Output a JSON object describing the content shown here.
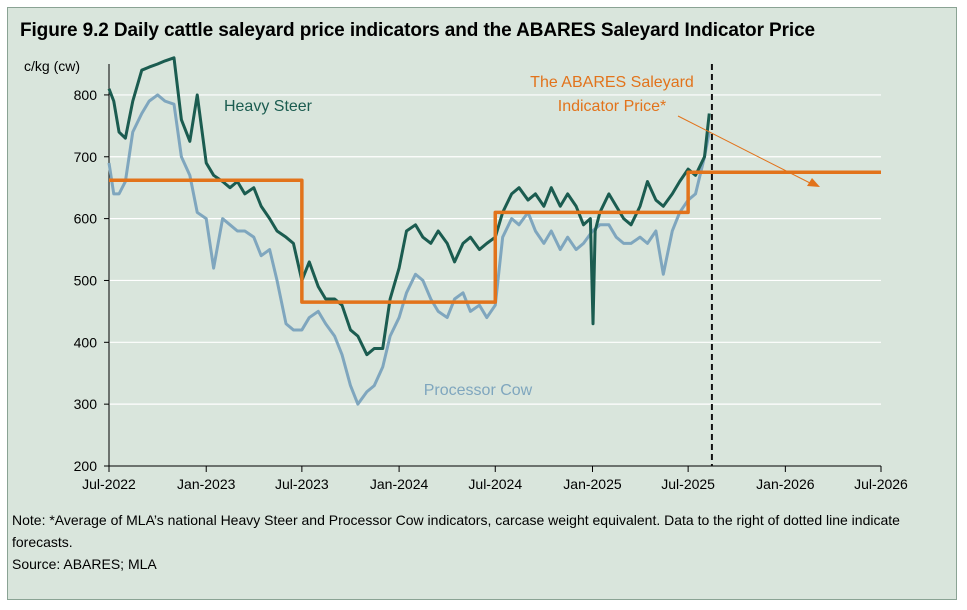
{
  "title": "Figure 9.2 Daily cattle saleyard price indicators and the ABARES Saleyard Indicator Price",
  "note": "Note: *Average of MLA’s national Heavy Steer and Processor Cow indicators, carcase weight equivalent. Data to the right of dotted line indicate forecasts.",
  "source": "Source: ABARES; MLA",
  "colors": {
    "heavy_steer": "#1b5c50",
    "processor_cow": "#7fa6be",
    "indicator": "#e2731b",
    "background": "#d9e5dc",
    "gridline": "#ffffff"
  },
  "chart_data": {
    "type": "line",
    "ylabel": "c/kg (cw)",
    "ylim": [
      200,
      850
    ],
    "yticks": [
      200,
      300,
      400,
      500,
      600,
      700,
      800
    ],
    "xlim": [
      "2022-07-01",
      "2026-07-01"
    ],
    "xticks": [
      "2022-07-01",
      "2023-01-01",
      "2023-07-01",
      "2024-01-01",
      "2024-07-01",
      "2025-01-01",
      "2025-07-01",
      "2026-01-01",
      "2026-07-01"
    ],
    "xtick_labels": [
      "Jul-2022",
      "Jan-2023",
      "Jul-2023",
      "Jan-2024",
      "Jul-2024",
      "Jan-2025",
      "Jul-2025",
      "Jan-2026",
      "Jul-2026"
    ],
    "grid": true,
    "forecast_divider": "2025-08-15",
    "annotations": {
      "heavy_steer_label": "Heavy Steer",
      "processor_cow_label": "Processor Cow",
      "indicator_label_line1": "The ABARES Saleyard",
      "indicator_label_line2": "Indicator Price*"
    },
    "series": [
      {
        "name": "Heavy Steer",
        "x": [
          "2022-07-01",
          "2022-07-10",
          "2022-07-20",
          "2022-08-01",
          "2022-08-15",
          "2022-09-01",
          "2022-09-15",
          "2022-10-01",
          "2022-10-15",
          "2022-11-01",
          "2022-11-15",
          "2022-12-01",
          "2022-12-15",
          "2023-01-01",
          "2023-01-15",
          "2023-02-01",
          "2023-02-15",
          "2023-03-01",
          "2023-03-15",
          "2023-04-01",
          "2023-04-15",
          "2023-05-01",
          "2023-05-15",
          "2023-06-01",
          "2023-06-15",
          "2023-07-01",
          "2023-07-15",
          "2023-08-01",
          "2023-08-15",
          "2023-09-01",
          "2023-09-15",
          "2023-10-01",
          "2023-10-15",
          "2023-11-01",
          "2023-11-15",
          "2023-12-01",
          "2023-12-15",
          "2024-01-01",
          "2024-01-15",
          "2024-02-01",
          "2024-02-15",
          "2024-03-01",
          "2024-03-15",
          "2024-04-01",
          "2024-04-15",
          "2024-05-01",
          "2024-05-15",
          "2024-06-01",
          "2024-06-15",
          "2024-07-01",
          "2024-07-15",
          "2024-08-01",
          "2024-08-15",
          "2024-09-01",
          "2024-09-15",
          "2024-10-01",
          "2024-10-15",
          "2024-11-01",
          "2024-11-15",
          "2024-12-01",
          "2024-12-15",
          "2024-12-28",
          "2025-01-02",
          "2025-01-06",
          "2025-01-15",
          "2025-02-01",
          "2025-02-15",
          "2025-03-01",
          "2025-03-15",
          "2025-04-01",
          "2025-04-15",
          "2025-05-01",
          "2025-05-15",
          "2025-06-01",
          "2025-06-15",
          "2025-07-01",
          "2025-07-15",
          "2025-08-01",
          "2025-08-10"
        ],
        "values": [
          810,
          790,
          740,
          730,
          790,
          840,
          845,
          850,
          855,
          860,
          760,
          725,
          800,
          690,
          670,
          660,
          650,
          660,
          640,
          650,
          620,
          600,
          580,
          570,
          560,
          500,
          530,
          490,
          470,
          470,
          460,
          420,
          410,
          380,
          390,
          390,
          470,
          520,
          580,
          590,
          570,
          560,
          580,
          560,
          530,
          560,
          570,
          550,
          560,
          570,
          610,
          640,
          650,
          630,
          640,
          620,
          650,
          620,
          640,
          620,
          590,
          600,
          430,
          580,
          610,
          640,
          620,
          600,
          590,
          620,
          660,
          630,
          620,
          640,
          660,
          680,
          670,
          700,
          770
        ]
      },
      {
        "name": "Processor Cow",
        "x": [
          "2022-07-01",
          "2022-07-10",
          "2022-07-20",
          "2022-08-01",
          "2022-08-15",
          "2022-09-01",
          "2022-09-15",
          "2022-10-01",
          "2022-10-15",
          "2022-11-01",
          "2022-11-15",
          "2022-12-01",
          "2022-12-15",
          "2023-01-01",
          "2023-01-15",
          "2023-02-01",
          "2023-02-15",
          "2023-03-01",
          "2023-03-15",
          "2023-04-01",
          "2023-04-15",
          "2023-05-01",
          "2023-05-15",
          "2023-06-01",
          "2023-06-15",
          "2023-07-01",
          "2023-07-15",
          "2023-08-01",
          "2023-08-15",
          "2023-09-01",
          "2023-09-15",
          "2023-10-01",
          "2023-10-15",
          "2023-11-01",
          "2023-11-15",
          "2023-12-01",
          "2023-12-15",
          "2024-01-01",
          "2024-01-15",
          "2024-02-01",
          "2024-02-15",
          "2024-03-01",
          "2024-03-15",
          "2024-04-01",
          "2024-04-15",
          "2024-05-01",
          "2024-05-15",
          "2024-06-01",
          "2024-06-15",
          "2024-07-01",
          "2024-07-15",
          "2024-08-01",
          "2024-08-15",
          "2024-09-01",
          "2024-09-15",
          "2024-10-01",
          "2024-10-15",
          "2024-11-01",
          "2024-11-15",
          "2024-12-01",
          "2024-12-15",
          "2025-01-01",
          "2025-01-15",
          "2025-02-01",
          "2025-02-15",
          "2025-03-01",
          "2025-03-15",
          "2025-04-01",
          "2025-04-15",
          "2025-05-01",
          "2025-05-15",
          "2025-06-01",
          "2025-06-15",
          "2025-07-01",
          "2025-07-15",
          "2025-08-01",
          "2025-08-10"
        ],
        "values": [
          690,
          640,
          640,
          660,
          740,
          770,
          790,
          800,
          790,
          785,
          700,
          670,
          610,
          600,
          520,
          600,
          590,
          580,
          580,
          570,
          540,
          550,
          500,
          430,
          420,
          420,
          440,
          450,
          430,
          410,
          380,
          330,
          300,
          320,
          330,
          360,
          410,
          440,
          480,
          510,
          500,
          470,
          450,
          440,
          470,
          480,
          450,
          460,
          440,
          460,
          570,
          600,
          590,
          610,
          580,
          560,
          580,
          550,
          570,
          550,
          560,
          580,
          590,
          590,
          570,
          560,
          560,
          570,
          560,
          580,
          510,
          580,
          610,
          630,
          640,
          700,
          740
        ]
      },
      {
        "name": "The ABARES Saleyard Indicator Price*",
        "step": true,
        "x": [
          "2022-07-01",
          "2023-07-01",
          "2024-07-01",
          "2025-07-01",
          "2026-07-01"
        ],
        "values": [
          662,
          465,
          610,
          675,
          675
        ]
      }
    ]
  }
}
